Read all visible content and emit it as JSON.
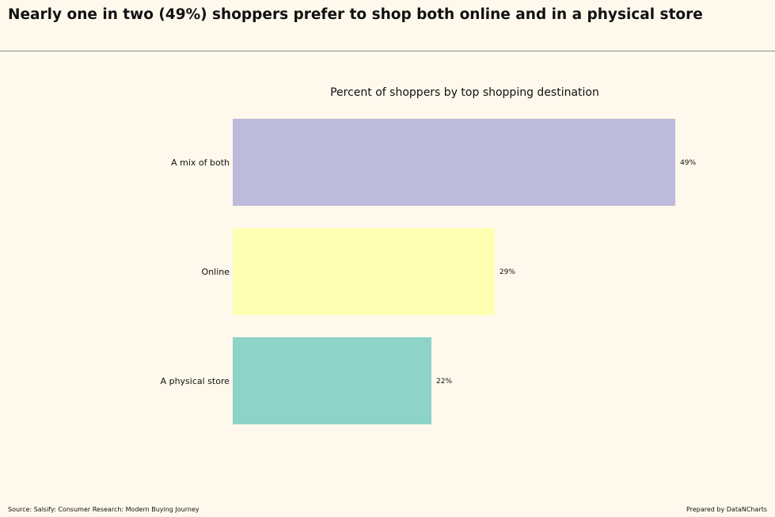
{
  "headline": "Nearly one in two (49%) shoppers prefer to shop both online and in a physical store",
  "source": "Source: Salsify: Consumer Research: Modern Buying Journey",
  "credit": "Prepared by DataNCharts",
  "chart_data": {
    "type": "bar",
    "orientation": "horizontal",
    "title": "Percent of shoppers by top shopping destination",
    "xlabel": "",
    "ylabel": "",
    "categories": [
      "A mix of both",
      "Online",
      "A physical store"
    ],
    "values": [
      49,
      29,
      22
    ],
    "data_labels": [
      "49%",
      "29%",
      "22%"
    ],
    "colors": [
      "#bebada",
      "#ffffb3",
      "#8dd3c7"
    ],
    "value_unit": "%",
    "grid": false,
    "legend": "none"
  }
}
